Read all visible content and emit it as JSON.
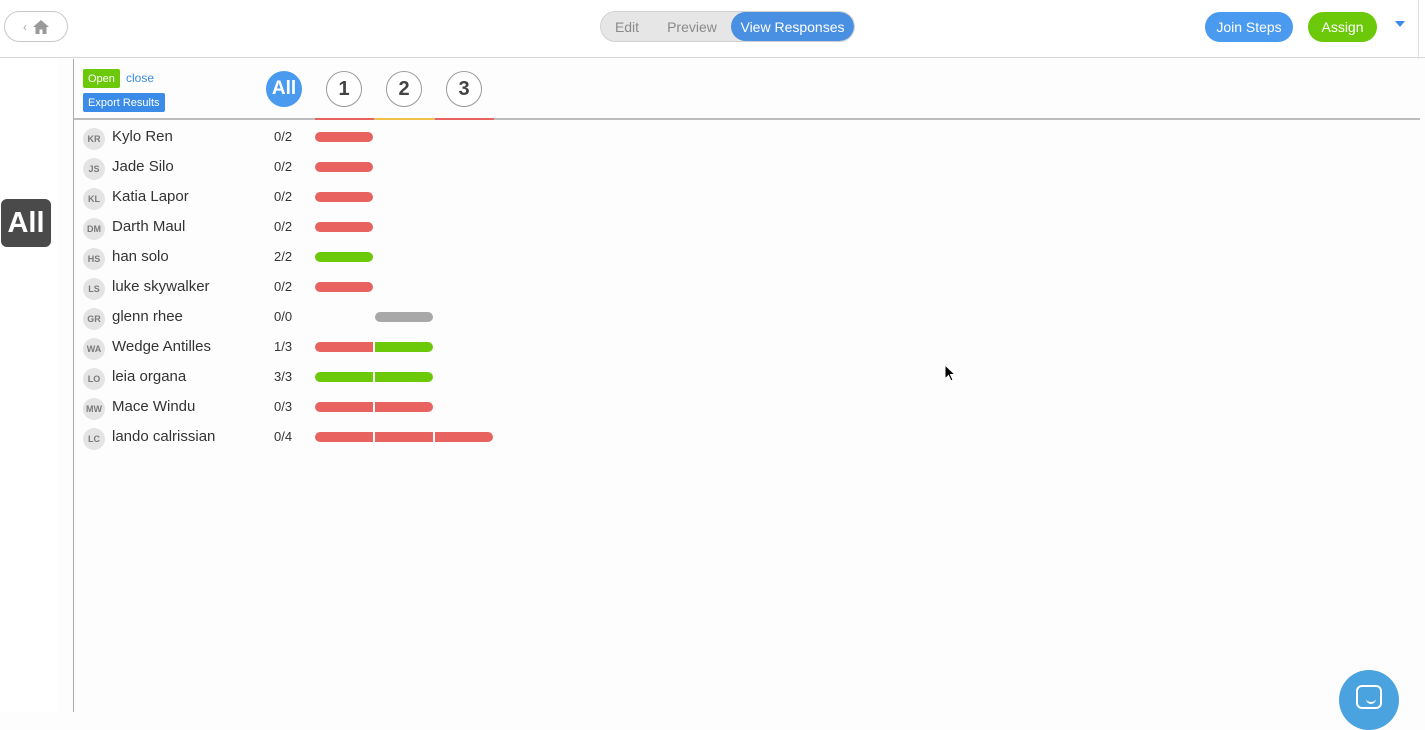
{
  "topbar": {
    "segments": {
      "edit": "Edit",
      "preview": "Preview",
      "view_responses": "View Responses"
    },
    "join_steps": "Join Steps",
    "assign": "Assign"
  },
  "rail": {
    "all_label": "All"
  },
  "header": {
    "open_badge": "Open",
    "close_link": "close",
    "export_button": "Export Results",
    "question_tabs": [
      {
        "label": "All"
      },
      {
        "label": "1",
        "status_color": "#e8625f"
      },
      {
        "label": "2",
        "status_color": "#f0c24a"
      },
      {
        "label": "3",
        "status_color": "#e8625f"
      }
    ]
  },
  "colors": {
    "accent_blue": "#4a90e2",
    "correct_green": "#6cc90a",
    "incorrect_red": "#e8625f",
    "unanswered_gray": "#a8a8a8"
  },
  "students": [
    {
      "initials": "KR",
      "name": "Kylo Ren",
      "score": "0/2",
      "bars": [
        "incorrect",
        "",
        ""
      ]
    },
    {
      "initials": "JS",
      "name": "Jade Silo",
      "score": "0/2",
      "bars": [
        "incorrect",
        "",
        ""
      ]
    },
    {
      "initials": "KL",
      "name": "Katia Lapor",
      "score": "0/2",
      "bars": [
        "incorrect",
        "",
        ""
      ]
    },
    {
      "initials": "DM",
      "name": "Darth Maul",
      "score": "0/2",
      "bars": [
        "incorrect",
        "",
        ""
      ]
    },
    {
      "initials": "HS",
      "name": "han solo",
      "score": "2/2",
      "bars": [
        "correct",
        "",
        ""
      ]
    },
    {
      "initials": "LS",
      "name": "luke skywalker",
      "score": "0/2",
      "bars": [
        "incorrect",
        "",
        ""
      ]
    },
    {
      "initials": "GR",
      "name": "glenn rhee",
      "score": "0/0",
      "bars": [
        "",
        "unanswered",
        ""
      ]
    },
    {
      "initials": "WA",
      "name": "Wedge Antilles",
      "score": "1/3",
      "bars": [
        "incorrect",
        "correct",
        ""
      ]
    },
    {
      "initials": "LO",
      "name": "leia organa",
      "score": "3/3",
      "bars": [
        "correct",
        "correct",
        ""
      ]
    },
    {
      "initials": "MW",
      "name": "Mace Windu",
      "score": "0/3",
      "bars": [
        "incorrect",
        "incorrect",
        ""
      ]
    },
    {
      "initials": "LC",
      "name": "lando calrissian",
      "score": "0/4",
      "bars": [
        "incorrect",
        "incorrect",
        "incorrect"
      ]
    }
  ]
}
